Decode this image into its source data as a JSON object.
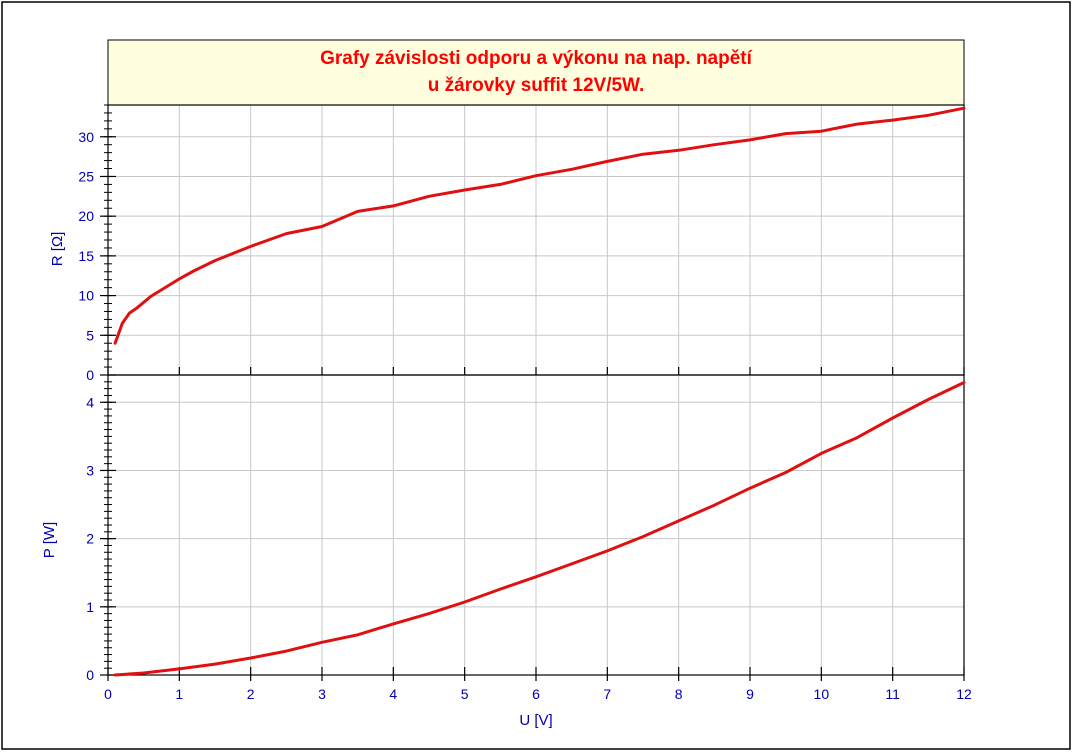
{
  "title": {
    "line1": "Grafy závislosti odporu a výkonu na nap. napětí",
    "line2": "u žárovky  suffit 12V/5W."
  },
  "colors": {
    "series": "#e01010",
    "axis_text": "#0000b0",
    "title_text": "#ff0000",
    "title_bg": "#ffffe0",
    "grid": "#c8c8c8"
  },
  "chart_data": [
    {
      "type": "line",
      "ylabel": "R [Ω]",
      "xlabel": "",
      "xlim": [
        0,
        12
      ],
      "ylim": [
        0,
        34
      ],
      "yticks": [
        0,
        5,
        10,
        15,
        20,
        25,
        30
      ],
      "xticks": [
        0,
        1,
        2,
        3,
        4,
        5,
        6,
        7,
        8,
        9,
        10,
        11,
        12
      ],
      "grid": true,
      "series": [
        {
          "x": [
            0.1,
            0.2,
            0.3,
            0.4,
            0.6,
            0.8,
            1.0,
            1.2,
            1.5,
            2.0,
            2.5,
            3.0,
            3.5,
            4.0,
            4.5,
            5.0,
            5.5,
            6.0,
            6.5,
            7.0,
            7.5,
            8.0,
            8.5,
            9.0,
            9.5,
            10.0,
            10.5,
            11.0,
            11.5,
            12.0
          ],
          "y": [
            4.0,
            6.5,
            7.8,
            8.4,
            9.9,
            11.0,
            12.1,
            13.1,
            14.4,
            16.2,
            17.8,
            18.7,
            20.6,
            21.3,
            22.5,
            23.3,
            24.0,
            25.1,
            25.9,
            26.9,
            27.8,
            28.3,
            29.0,
            29.6,
            30.4,
            30.7,
            31.6,
            32.1,
            32.7,
            33.6
          ]
        }
      ]
    },
    {
      "type": "line",
      "ylabel": "P [W]",
      "xlabel": "U [V]",
      "xlim": [
        0,
        12
      ],
      "ylim": [
        0,
        4.4
      ],
      "yticks": [
        0,
        1,
        2,
        3,
        4
      ],
      "xticks": [
        0,
        1,
        2,
        3,
        4,
        5,
        6,
        7,
        8,
        9,
        10,
        11,
        12
      ],
      "grid": true,
      "series": [
        {
          "x": [
            0.1,
            0.5,
            1.0,
            1.5,
            2.0,
            2.5,
            3.0,
            3.5,
            4.0,
            4.5,
            5.0,
            5.5,
            6.0,
            6.5,
            7.0,
            7.5,
            8.0,
            8.5,
            9.0,
            9.5,
            10.0,
            10.5,
            11.0,
            11.5,
            12.0
          ],
          "y": [
            0.0,
            0.03,
            0.09,
            0.16,
            0.25,
            0.35,
            0.48,
            0.59,
            0.75,
            0.9,
            1.07,
            1.26,
            1.44,
            1.63,
            1.82,
            2.03,
            2.26,
            2.49,
            2.74,
            2.97,
            3.25,
            3.48,
            3.77,
            4.04,
            4.29
          ]
        }
      ]
    }
  ]
}
